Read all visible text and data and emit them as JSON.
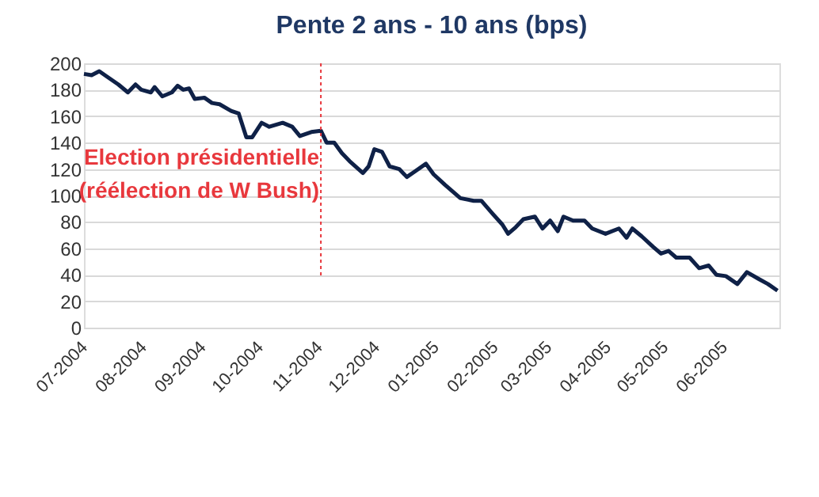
{
  "chart_data": {
    "type": "line",
    "title": "Pente 2 ans - 10 ans (bps)",
    "x": [
      "2004-07-01",
      "2004-07-05",
      "2004-07-09",
      "2004-07-13",
      "2004-07-19",
      "2004-07-24",
      "2004-07-28",
      "2004-07-31",
      "2004-08-05",
      "2004-08-07",
      "2004-08-11",
      "2004-08-16",
      "2004-08-19",
      "2004-08-22",
      "2004-08-25",
      "2004-08-28",
      "2004-09-02",
      "2004-09-06",
      "2004-09-10",
      "2004-09-16",
      "2004-09-20",
      "2004-09-24",
      "2004-09-27",
      "2004-10-02",
      "2004-10-06",
      "2004-10-13",
      "2004-10-18",
      "2004-10-22",
      "2004-10-28",
      "2004-11-02",
      "2004-11-05",
      "2004-11-09",
      "2004-11-13",
      "2004-11-17",
      "2004-11-24",
      "2004-11-27",
      "2004-11-30",
      "2004-12-04",
      "2004-12-08",
      "2004-12-13",
      "2004-12-17",
      "2004-12-21",
      "2004-12-27",
      "2004-12-31",
      "2005-01-06",
      "2005-01-14",
      "2005-01-21",
      "2005-01-25",
      "2005-01-31",
      "2005-02-05",
      "2005-02-08",
      "2005-02-12",
      "2005-02-16",
      "2005-02-22",
      "2005-02-26",
      "2005-03-02",
      "2005-03-06",
      "2005-03-09",
      "2005-03-14",
      "2005-03-20",
      "2005-03-24",
      "2005-03-31",
      "2005-04-07",
      "2005-04-11",
      "2005-04-14",
      "2005-04-19",
      "2005-04-25",
      "2005-04-29",
      "2005-05-03",
      "2005-05-07",
      "2005-05-14",
      "2005-05-19",
      "2005-05-24",
      "2005-05-28",
      "2005-06-02",
      "2005-06-08",
      "2005-06-13",
      "2005-06-19",
      "2005-06-24",
      "2005-06-29"
    ],
    "series": [
      {
        "color": "#0f2147",
        "values": [
          192,
          191,
          194,
          190,
          184,
          178,
          184,
          180,
          178,
          182,
          175,
          178,
          183,
          180,
          181,
          173,
          174,
          170,
          169,
          164,
          162,
          144,
          144,
          155,
          152,
          155,
          152,
          145,
          148,
          149,
          140,
          140,
          132,
          126,
          117,
          122,
          135,
          133,
          122,
          120,
          114,
          118,
          124,
          116,
          108,
          98,
          96,
          96,
          86,
          78,
          71,
          76,
          82,
          84,
          75,
          81,
          73,
          84,
          81,
          81,
          75,
          71,
          75,
          68,
          75,
          69,
          61,
          56,
          58,
          53,
          53,
          45,
          47,
          40,
          39,
          33,
          42,
          37,
          33,
          28
        ]
      }
    ],
    "xlim": [
      "2004-07-01",
      "2005-06-30"
    ],
    "xticks": [
      {
        "value": "2004-07-01",
        "label": "07-2004"
      },
      {
        "value": "2004-08-01",
        "label": "08-2004"
      },
      {
        "value": "2004-09-01",
        "label": "09-2004"
      },
      {
        "value": "2004-10-01",
        "label": "10-2004"
      },
      {
        "value": "2004-11-01",
        "label": "11-2004"
      },
      {
        "value": "2004-12-01",
        "label": "12-2004"
      },
      {
        "value": "2005-01-01",
        "label": "01-2005"
      },
      {
        "value": "2005-02-01",
        "label": "02-2005"
      },
      {
        "value": "2005-03-01",
        "label": "03-2005"
      },
      {
        "value": "2005-04-01",
        "label": "04-2005"
      },
      {
        "value": "2005-05-01",
        "label": "05-2005"
      },
      {
        "value": "2005-06-01",
        "label": "06-2005"
      }
    ],
    "ylim": [
      0,
      200
    ],
    "yticks": [
      0,
      20,
      40,
      60,
      80,
      100,
      120,
      140,
      160,
      180,
      200
    ],
    "grid": "y",
    "marker": "none",
    "line_style": "solid",
    "ref_lines": [
      {
        "axis": "x",
        "value": "2004-11-02",
        "label": "Election présidentielle\n(réélection de W Bush)",
        "color": "#e8383d",
        "line_style": "dotted"
      }
    ]
  }
}
